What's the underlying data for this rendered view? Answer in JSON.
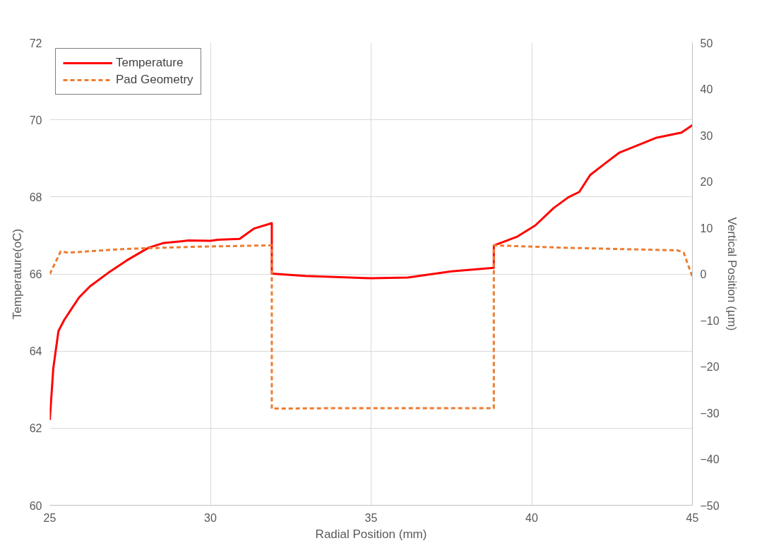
{
  "chart_data": {
    "type": "line",
    "xlabel": "Radial Position (mm)",
    "ylabel": "Temperature(oC)",
    "y2label": "Vertical Position (µm)",
    "xlim": [
      25,
      45
    ],
    "xticks": [
      25,
      30,
      35,
      40,
      45
    ],
    "ylim": [
      60,
      72
    ],
    "yticks": [
      60,
      62,
      64,
      66,
      68,
      70,
      72
    ],
    "y2lim": [
      -50,
      50
    ],
    "y2ticks": [
      -50,
      -40,
      -30,
      -20,
      -10,
      0,
      10,
      20,
      30,
      40,
      50
    ],
    "grid": true,
    "legend": "top left",
    "series": [
      {
        "name": "Temperature",
        "color": "#ff0000",
        "line_style": "solid",
        "x": [
          25,
          25.11,
          25.27,
          25.45,
          25.68,
          25.91,
          26.25,
          26.82,
          27.39,
          28.07,
          28.52,
          29.32,
          30,
          30.23,
          30.91,
          31.36,
          31.91,
          31.91,
          32.95,
          35,
          36.14,
          37.5,
          38.82,
          38.82,
          39.55,
          40.11,
          40.68,
          41.14,
          41.48,
          41.82,
          42.27,
          42.73,
          43.18,
          43.86,
          44.66,
          45
        ],
        "values": [
          62.21,
          63.56,
          64.52,
          64.81,
          65.1,
          65.39,
          65.68,
          66.03,
          66.35,
          66.68,
          66.8,
          66.87,
          66.86,
          66.89,
          66.91,
          67.18,
          67.32,
          66.01,
          65.95,
          65.89,
          65.91,
          66.07,
          66.16,
          66.74,
          66.97,
          67.26,
          67.71,
          67.99,
          68.13,
          68.57,
          68.86,
          69.15,
          69.3,
          69.53,
          69.67,
          69.86
        ]
      },
      {
        "name": "Pad Geometry",
        "color": "#ed7d31",
        "line_style": "dashed",
        "axis": "y2",
        "x": [
          25,
          25.34,
          25.57,
          27.27,
          29.55,
          31.91,
          31.91,
          34.09,
          38.82,
          38.82,
          40.91,
          44.55,
          44.73,
          45
        ],
        "values": [
          0,
          4.9,
          4.6,
          5.4,
          5.9,
          6.2,
          -29.1,
          -29.0,
          -29.0,
          6.2,
          5.7,
          5.1,
          4.6,
          -0.6
        ]
      }
    ]
  }
}
